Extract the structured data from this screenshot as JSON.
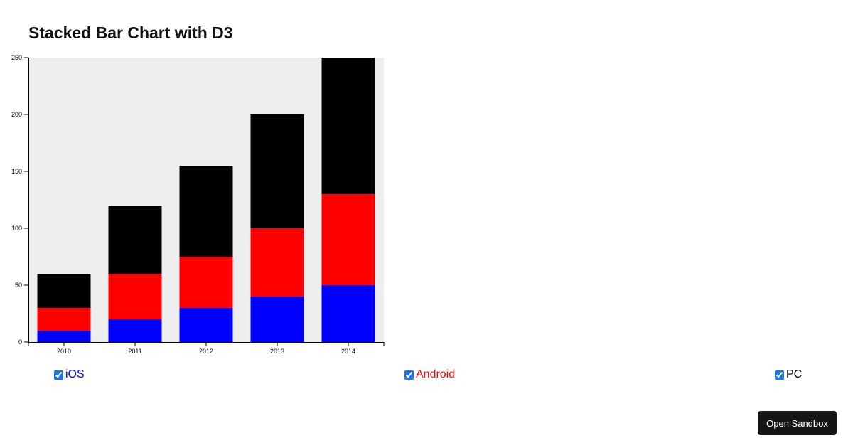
{
  "title": "Stacked Bar Chart with D3",
  "chart_data": {
    "type": "bar",
    "stacked": true,
    "categories": [
      "2010",
      "2011",
      "2012",
      "2013",
      "2014"
    ],
    "series": [
      {
        "name": "iOS",
        "color": "#0000ff",
        "values": [
          10,
          20,
          30,
          40,
          50
        ]
      },
      {
        "name": "Android",
        "color": "#ff0000",
        "values": [
          20,
          40,
          45,
          60,
          80
        ]
      },
      {
        "name": "PC",
        "color": "#000000",
        "values": [
          30,
          60,
          80,
          100,
          120
        ]
      }
    ],
    "ylim": [
      0,
      250
    ],
    "yticks": [
      "0",
      "50",
      "100",
      "150",
      "200",
      "250"
    ],
    "background": "#eeeeee",
    "legend_placement": "bottom"
  },
  "legend": [
    {
      "label": "iOS",
      "checked": true,
      "color": "#0000ff"
    },
    {
      "label": "Android",
      "checked": true,
      "color": "#ff0000"
    },
    {
      "label": "PC",
      "checked": true,
      "color": "#000000"
    }
  ],
  "open_sandbox_label": "Open Sandbox"
}
